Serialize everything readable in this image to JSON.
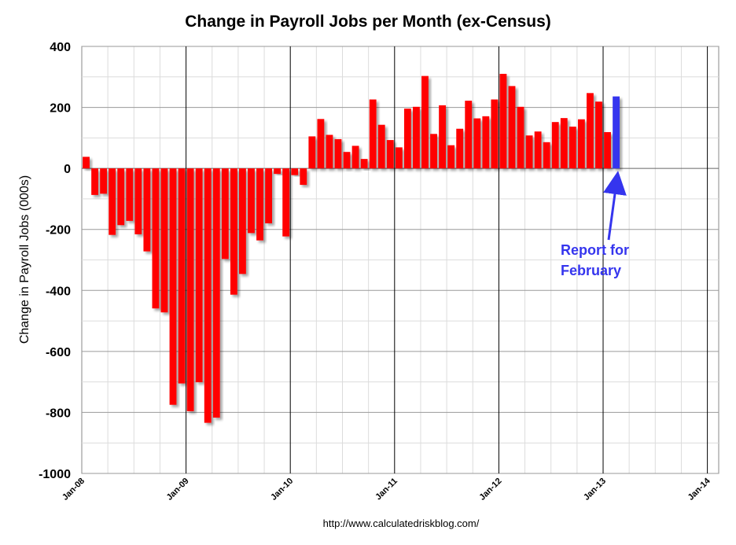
{
  "chart_data": {
    "type": "bar",
    "title": "Change in Payroll Jobs per Month (ex-Census)",
    "ylabel": "Change in Payroll Jobs (000s)",
    "xlabel": "",
    "ylim": [
      -1000,
      400
    ],
    "yticks": [
      "400",
      "200",
      "0",
      "-200",
      "-400",
      "-600",
      "-800",
      "-1000"
    ],
    "xticks": [
      "Jan-08",
      "Jan-09",
      "Jan-10",
      "Jan-11",
      "Jan-12",
      "Jan-13",
      "Jan-14"
    ],
    "grid": true,
    "series": [
      {
        "color": "#ff0000",
        "start": "Jan-08",
        "values": [
          38,
          -87,
          -83,
          -218,
          -186,
          -172,
          -216,
          -272,
          -459,
          -472,
          -775,
          -705,
          -796,
          -701,
          -834,
          -817,
          -297,
          -414,
          -346,
          -212,
          -236,
          -180,
          -18,
          -223,
          -22,
          -54,
          105,
          162,
          110,
          96,
          54,
          74,
          31,
          226,
          143,
          93,
          69,
          196,
          202,
          303,
          113,
          207,
          76,
          130,
          222,
          164,
          171,
          226,
          310,
          270,
          202,
          108,
          121,
          86,
          152,
          165,
          137,
          161,
          247,
          219,
          119
        ]
      },
      {
        "color": "#3535ee",
        "start": "Feb-13",
        "values": [
          236
        ]
      }
    ],
    "annotation": {
      "lines": [
        "Report for",
        "February"
      ],
      "color": "#3535ee"
    },
    "source": "http://www.calculatedriskblog.com/"
  }
}
